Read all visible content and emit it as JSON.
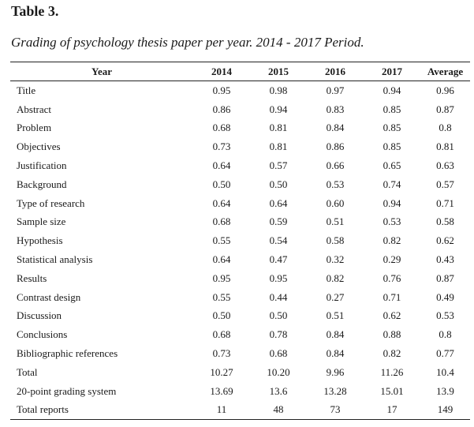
{
  "table_label": "Table 3.",
  "caption": "Grading of psychology thesis paper per year. 2014 - 2017 Period.",
  "columns": [
    "Year",
    "2014",
    "2015",
    "2016",
    "2017",
    "Average"
  ],
  "rows": [
    [
      "Title",
      "0.95",
      "0.98",
      "0.97",
      "0.94",
      "0.96"
    ],
    [
      "Abstract",
      "0.86",
      "0.94",
      "0.83",
      "0.85",
      "0.87"
    ],
    [
      "Problem",
      "0.68",
      "0.81",
      "0.84",
      "0.85",
      "0.8"
    ],
    [
      "Objectives",
      "0.73",
      "0.81",
      "0.86",
      "0.85",
      "0.81"
    ],
    [
      "Justification",
      "0.64",
      "0.57",
      "0.66",
      "0.65",
      "0.63"
    ],
    [
      "Background",
      "0.50",
      "0.50",
      "0.53",
      "0.74",
      "0.57"
    ],
    [
      "Type of research",
      "0.64",
      "0.64",
      "0.60",
      "0.94",
      "0.71"
    ],
    [
      "Sample size",
      "0.68",
      "0.59",
      "0.51",
      "0.53",
      "0.58"
    ],
    [
      "Hypothesis",
      "0.55",
      "0.54",
      "0.58",
      "0.82",
      "0.62"
    ],
    [
      "Statistical analysis",
      "0.64",
      "0.47",
      "0.32",
      "0.29",
      "0.43"
    ],
    [
      "Results",
      "0.95",
      "0.95",
      "0.82",
      "0.76",
      "0.87"
    ],
    [
      "Contrast design",
      "0.55",
      "0.44",
      "0.27",
      "0.71",
      "0.49"
    ],
    [
      "Discussion",
      "0.50",
      "0.50",
      "0.51",
      "0.62",
      "0.53"
    ],
    [
      "Conclusions",
      "0.68",
      "0.78",
      "0.84",
      "0.88",
      "0.8"
    ],
    [
      "Bibliographic references",
      "0.73",
      "0.68",
      "0.84",
      "0.82",
      "0.77"
    ],
    [
      "Total",
      "10.27",
      "10.20",
      "9.96",
      "11.26",
      "10.4"
    ],
    [
      "20-point grading system",
      "13.69",
      "13.6",
      "13.28",
      "15.01",
      "13.9"
    ],
    [
      "Total reports",
      "11",
      "48",
      "73",
      "17",
      "149"
    ]
  ]
}
